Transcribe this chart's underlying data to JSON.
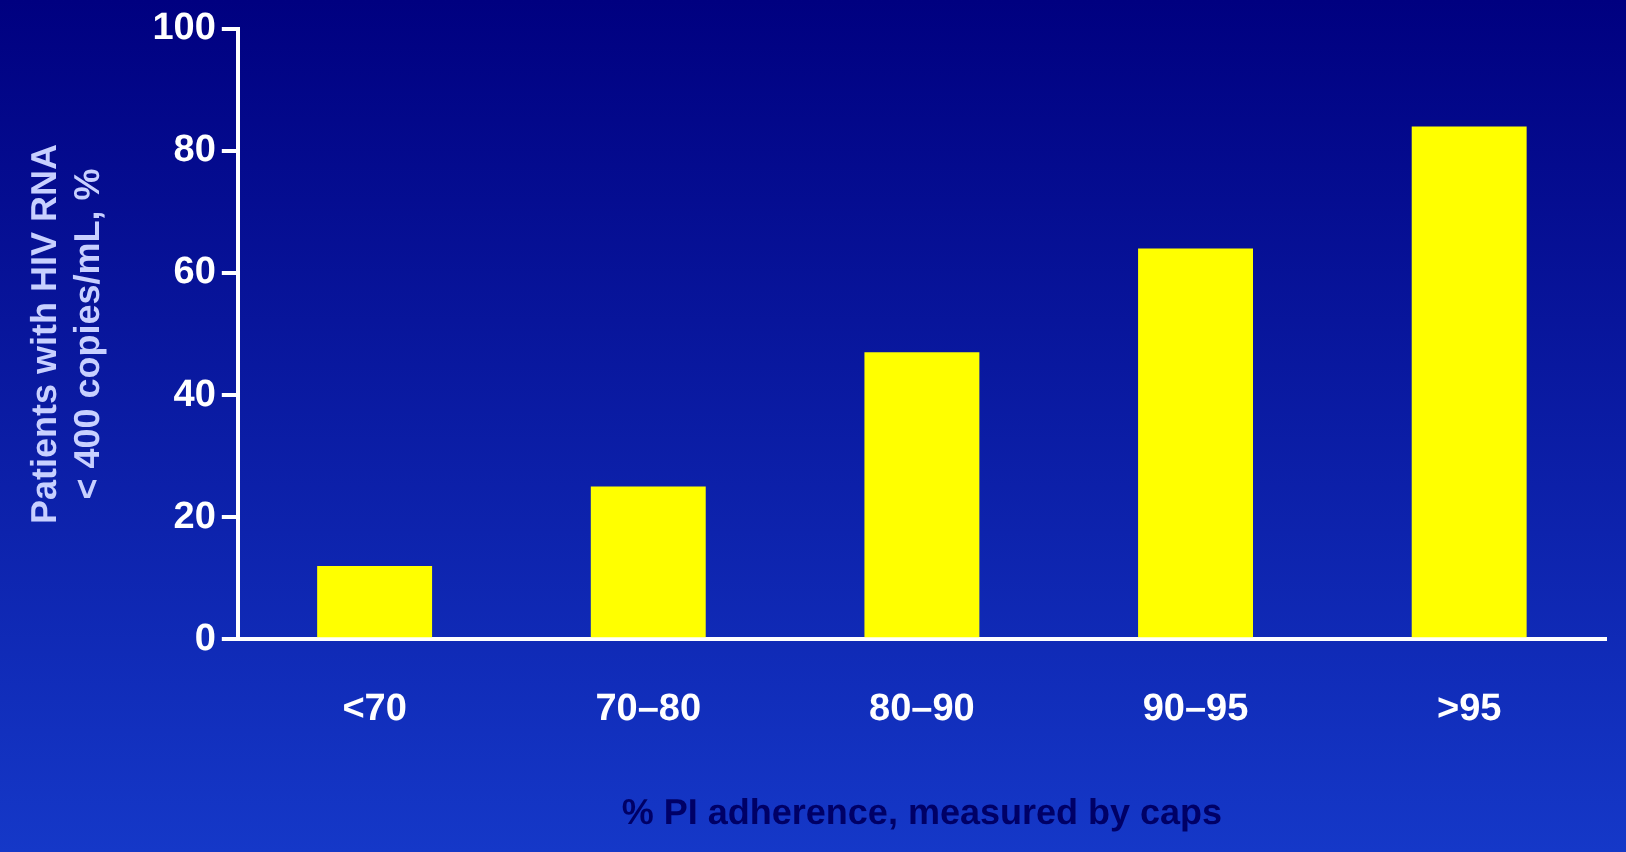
{
  "chart_data": {
    "type": "bar",
    "xlabel": "% PI adherence, measured by caps",
    "ylabel": "Patients with HIV RNA < 400 copies/mL, %",
    "categories": [
      "<70",
      "70–80",
      "80–90",
      "90–95",
      ">95"
    ],
    "values": [
      12,
      25,
      47,
      64,
      84
    ],
    "color": "#ffff00",
    "ylim": [
      0,
      100
    ],
    "yticks": [
      0,
      20,
      40,
      60,
      80,
      100
    ],
    "grid": false,
    "legend": false
  }
}
